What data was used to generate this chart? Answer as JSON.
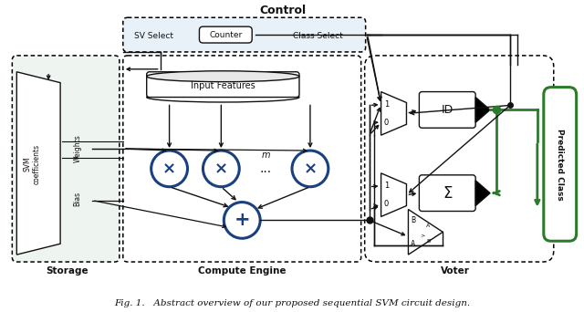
{
  "title": "Control",
  "caption": "Fig. 1.   Abstract overview of our proposed sequential SVM circuit design.",
  "bg_color": "#ffffff",
  "blue_color": "#1a4080",
  "green_color": "#2d7a2d",
  "light_blue_fill": "#e8f0f8",
  "storage_label": "Storage",
  "compute_label": "Compute Engine",
  "voter_label": "Voter",
  "svm_label": "SVM\ncoefficients",
  "weights_label": "Weights",
  "bias_label": "Bias",
  "input_features_label": "Input Features",
  "counter_label": "Counter",
  "sv_select_label": "SV Select",
  "class_select_label": "Class Select",
  "predicted_class_label": "Predicted Class",
  "id_label": "ID",
  "sum_label": "Σ",
  "mul_symbol": "×",
  "add_symbol": "+",
  "dots": "...",
  "m_label": "m"
}
